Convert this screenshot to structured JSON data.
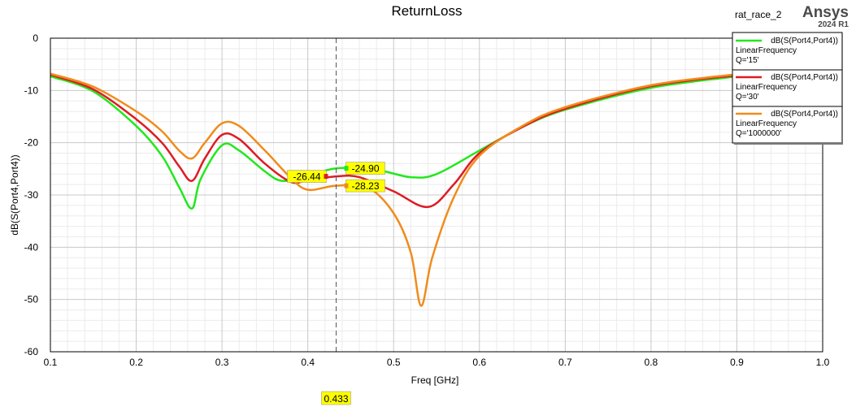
{
  "brand": {
    "name": "Ansys",
    "version": "2024 R1"
  },
  "project_name": "rat_race_2",
  "chart_data": {
    "type": "line",
    "title": "ReturnLoss",
    "xlabel": "Freq [GHz]",
    "ylabel": "dB(S(Port4,Port4))",
    "xlim": [
      0.1,
      1.0
    ],
    "ylim": [
      -60,
      0
    ],
    "x_ticks": [
      "0.1",
      "0.2",
      "0.3",
      "0.4",
      "0.5",
      "0.6",
      "0.7",
      "0.8",
      "0.9",
      "1.0"
    ],
    "y_ticks": [
      "0",
      "-10",
      "-20",
      "-30",
      "-40",
      "-50",
      "-60"
    ],
    "grid": true,
    "legend_position": "top-right",
    "series": [
      {
        "legend": [
          "dB(S(Port4,Port4))",
          "LinearFrequency",
          "Q='15'"
        ],
        "color": "#22e81c",
        "points": [
          [
            0.1,
            -7.3
          ],
          [
            0.15,
            -10.2
          ],
          [
            0.2,
            -16.8
          ],
          [
            0.23,
            -22.5
          ],
          [
            0.25,
            -28.5
          ],
          [
            0.265,
            -32.6
          ],
          [
            0.275,
            -27.0
          ],
          [
            0.3,
            -20.5
          ],
          [
            0.32,
            -21.5
          ],
          [
            0.35,
            -25.5
          ],
          [
            0.37,
            -27.3
          ],
          [
            0.4,
            -26.5
          ],
          [
            0.433,
            -24.9
          ],
          [
            0.48,
            -25.2
          ],
          [
            0.52,
            -26.6
          ],
          [
            0.55,
            -26.0
          ],
          [
            0.6,
            -21.5
          ],
          [
            0.65,
            -17.0
          ],
          [
            0.7,
            -13.7
          ],
          [
            0.8,
            -9.5
          ],
          [
            0.9,
            -7.3
          ]
        ]
      },
      {
        "legend": [
          "dB(S(Port4,Port4))",
          "LinearFrequency",
          "Q='30'"
        ],
        "color": "#dd1c24",
        "points": [
          [
            0.1,
            -7.0
          ],
          [
            0.15,
            -9.8
          ],
          [
            0.2,
            -15.5
          ],
          [
            0.23,
            -20.0
          ],
          [
            0.25,
            -24.5
          ],
          [
            0.265,
            -27.3
          ],
          [
            0.28,
            -23.0
          ],
          [
            0.3,
            -18.5
          ],
          [
            0.32,
            -19.3
          ],
          [
            0.35,
            -24.0
          ],
          [
            0.38,
            -27.5
          ],
          [
            0.4,
            -27.2
          ],
          [
            0.433,
            -26.44
          ],
          [
            0.46,
            -26.6
          ],
          [
            0.5,
            -29.3
          ],
          [
            0.54,
            -32.3
          ],
          [
            0.57,
            -28.0
          ],
          [
            0.6,
            -22.0
          ],
          [
            0.65,
            -17.0
          ],
          [
            0.7,
            -13.5
          ],
          [
            0.8,
            -9.2
          ],
          [
            0.9,
            -7.1
          ]
        ]
      },
      {
        "legend": [
          "dB(S(Port4,Port4))",
          "LinearFrequency",
          "Q='1000000'"
        ],
        "color": "#f08c1c",
        "points": [
          [
            0.1,
            -6.8
          ],
          [
            0.15,
            -9.3
          ],
          [
            0.2,
            -14.0
          ],
          [
            0.23,
            -17.8
          ],
          [
            0.25,
            -21.5
          ],
          [
            0.265,
            -23.0
          ],
          [
            0.28,
            -20.0
          ],
          [
            0.3,
            -16.3
          ],
          [
            0.32,
            -16.8
          ],
          [
            0.35,
            -21.5
          ],
          [
            0.38,
            -26.7
          ],
          [
            0.4,
            -29.0
          ],
          [
            0.433,
            -28.23
          ],
          [
            0.47,
            -28.6
          ],
          [
            0.5,
            -33.5
          ],
          [
            0.52,
            -41.0
          ],
          [
            0.532,
            -51.2
          ],
          [
            0.545,
            -42.0
          ],
          [
            0.57,
            -30.5
          ],
          [
            0.6,
            -22.5
          ],
          [
            0.65,
            -16.8
          ],
          [
            0.7,
            -13.2
          ],
          [
            0.8,
            -9.0
          ],
          [
            0.9,
            -6.9
          ]
        ]
      }
    ],
    "cursor": {
      "x": 0.433,
      "x_label": "0.433"
    },
    "markers": [
      {
        "label": "-24.90",
        "color": "#22e81c",
        "value": -24.9
      },
      {
        "label": "-26.44",
        "color": "#dd1c24",
        "value": -26.44
      },
      {
        "label": "-28.23",
        "color": "#f08c1c",
        "value": -28.23
      }
    ]
  }
}
